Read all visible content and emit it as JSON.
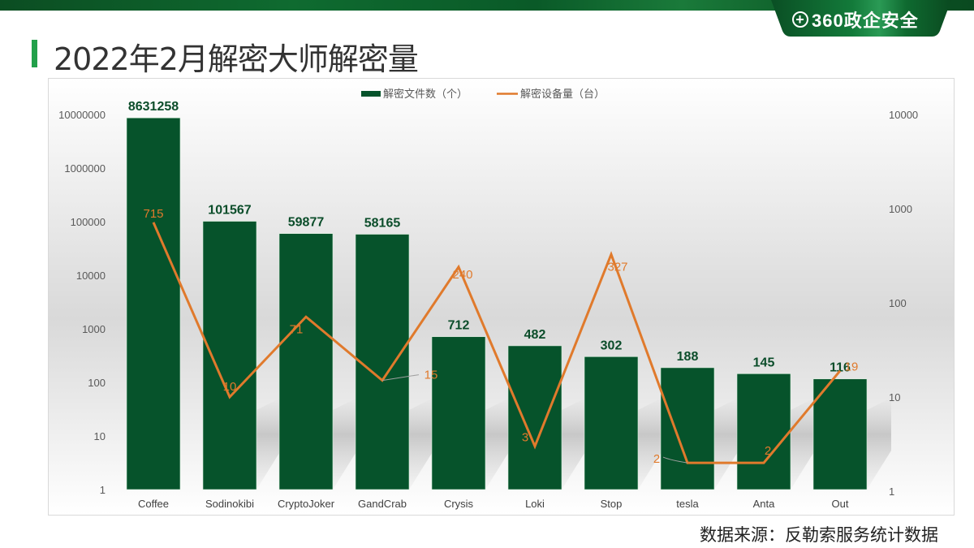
{
  "header": {
    "brand": "360政企安全",
    "title": "2022年2月解密大师解密量"
  },
  "footer": {
    "source_note": "数据来源：反勒索服务统计数据"
  },
  "colors": {
    "bar": "#06532b",
    "line": "#e07a2c",
    "title_accent": "#22a04a",
    "bar_label": "#0b4d2a",
    "line_label": "#e07a2c"
  },
  "chart_data": {
    "type": "bar+line",
    "title": "",
    "categories": [
      "Coffee",
      "Sodinokibi",
      "CryptoJoker",
      "GandCrab",
      "Crysis",
      "Loki",
      "Stop",
      "tesla",
      "Anta",
      "Out"
    ],
    "series": [
      {
        "name": "解密文件数（个）",
        "type": "bar",
        "axis": "left",
        "values": [
          8631258,
          101567,
          59877,
          58165,
          712,
          482,
          302,
          188,
          145,
          116
        ]
      },
      {
        "name": "解密设备量（台）",
        "type": "line",
        "axis": "right",
        "values": [
          715,
          10,
          71,
          15,
          240,
          3,
          327,
          2,
          2,
          19
        ]
      }
    ],
    "left_axis": {
      "scale": "log",
      "ticks": [
        "10000000",
        "1000000",
        "100000",
        "10000",
        "1000",
        "100",
        "10",
        "1"
      ],
      "ylim": [
        1,
        10000000
      ]
    },
    "right_axis": {
      "scale": "log",
      "ticks": [
        "10000",
        "1000",
        "100",
        "10",
        "1"
      ],
      "ylim": [
        1,
        10000
      ]
    },
    "legend": {
      "position": "top",
      "entries": [
        "解密文件数（个）",
        "解密设备量（台）"
      ]
    },
    "grid": false
  }
}
